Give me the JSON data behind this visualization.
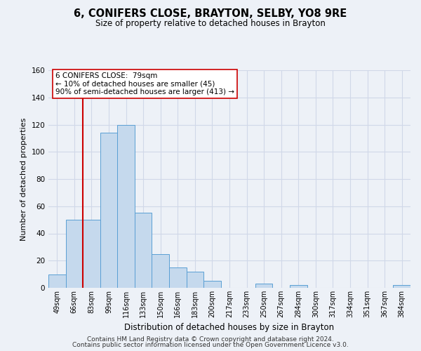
{
  "title": "6, CONIFERS CLOSE, BRAYTON, SELBY, YO8 9RE",
  "subtitle": "Size of property relative to detached houses in Brayton",
  "xlabel": "Distribution of detached houses by size in Brayton",
  "ylabel": "Number of detached properties",
  "categories": [
    "49sqm",
    "66sqm",
    "83sqm",
    "99sqm",
    "116sqm",
    "133sqm",
    "150sqm",
    "166sqm",
    "183sqm",
    "200sqm",
    "217sqm",
    "233sqm",
    "250sqm",
    "267sqm",
    "284sqm",
    "300sqm",
    "317sqm",
    "334sqm",
    "351sqm",
    "367sqm",
    "384sqm"
  ],
  "bar_values": [
    10,
    50,
    50,
    114,
    120,
    55,
    25,
    15,
    12,
    5,
    0,
    0,
    3,
    0,
    2,
    0,
    0,
    0,
    0,
    0,
    2
  ],
  "bar_color": "#c5d9ed",
  "bar_edge_color": "#5a9fd4",
  "grid_color": "#d0d8e8",
  "background_color": "#edf1f7",
  "vline_color": "#cc0000",
  "vline_pos": 1.5,
  "annotation_line1": "6 CONIFERS CLOSE:  79sqm",
  "annotation_line2": "← 10% of detached houses are smaller (45)",
  "annotation_line3": "90% of semi-detached houses are larger (413) →",
  "ylim": [
    0,
    160
  ],
  "yticks": [
    0,
    20,
    40,
    60,
    80,
    100,
    120,
    140,
    160
  ],
  "footer_line1": "Contains HM Land Registry data © Crown copyright and database right 2024.",
  "footer_line2": "Contains public sector information licensed under the Open Government Licence v3.0."
}
